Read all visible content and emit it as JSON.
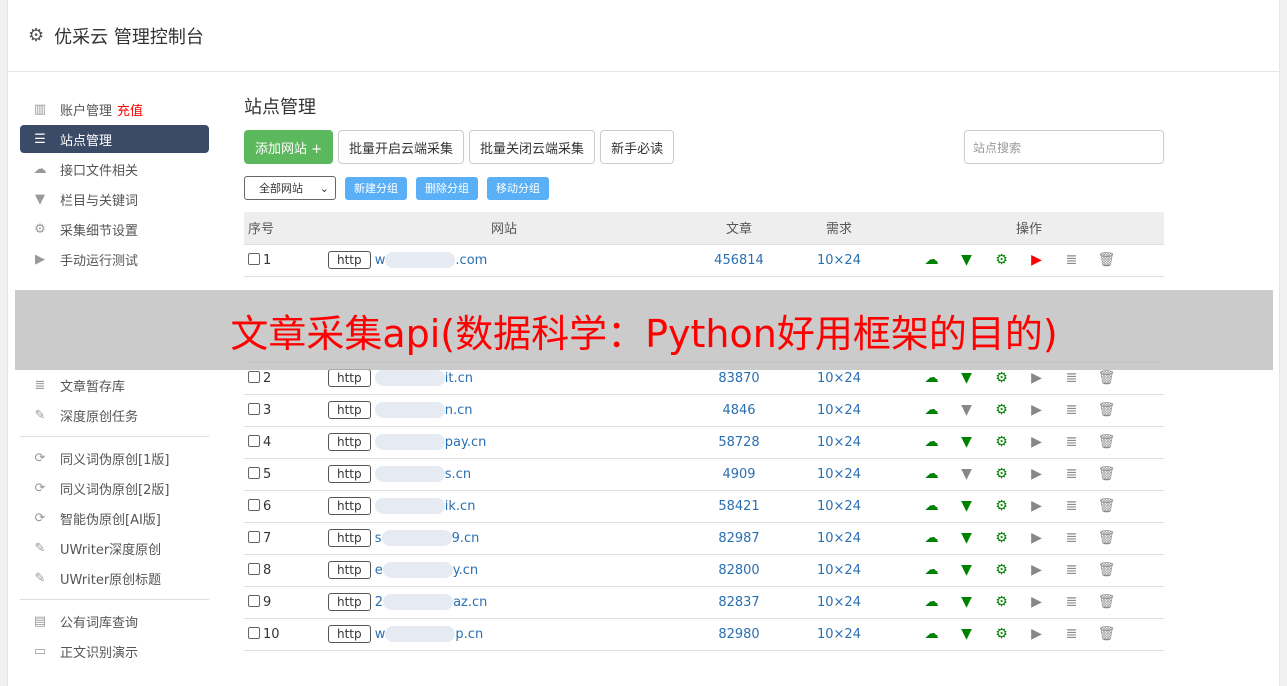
{
  "header": {
    "title": "优采云 管理控制台",
    "icon": "gear-icon"
  },
  "sidebar": {
    "items": [
      {
        "label": "账户管理",
        "extra": "充值",
        "icon": "bar-chart-icon"
      },
      {
        "label": "站点管理",
        "icon": "server-icon",
        "active": true
      },
      {
        "label": "接口文件相关",
        "icon": "cloud-upload-icon"
      },
      {
        "label": "栏目与关键词",
        "icon": "filter-icon"
      },
      {
        "label": "采集细节设置",
        "icon": "gears-icon"
      },
      {
        "label": "手动运行测试",
        "icon": "play-icon"
      },
      {
        "label": "文章暂存库",
        "icon": "database-icon"
      },
      {
        "label": "深度原创任务",
        "icon": "edit-icon"
      }
    ],
    "group2": [
      {
        "label": "同义词伪原创[1版]",
        "icon": "refresh-icon"
      },
      {
        "label": "同义词伪原创[2版]",
        "icon": "refresh-icon"
      },
      {
        "label": "智能伪原创[AI版]",
        "icon": "refresh-icon"
      },
      {
        "label": "UWriter深度原创",
        "icon": "edit-icon"
      },
      {
        "label": "UWriter原创标题",
        "icon": "edit-icon"
      }
    ],
    "group3": [
      {
        "label": "公有词库查询",
        "icon": "book-icon"
      },
      {
        "label": "正文识别演示",
        "icon": "monitor-icon"
      }
    ]
  },
  "main": {
    "title": "站点管理",
    "buttons": {
      "add": "添加网站 +",
      "enable": "批量开启云端采集",
      "disable": "批量关闭云端采集",
      "guide": "新手必读"
    },
    "search_placeholder": "站点搜索",
    "group_select": "全部网站",
    "group_buttons": {
      "new": "新建分组",
      "delete": "删除分组",
      "move": "移动分组"
    },
    "columns": [
      "序号",
      "网站",
      "文章",
      "需求",
      "操作"
    ],
    "rows": [
      {
        "n": "1",
        "proto": "http",
        "pre": "w",
        "suf": ".com",
        "articles": "456814",
        "need": "10×24",
        "play": "red",
        "filter": "green"
      },
      {
        "n": "2",
        "proto": "http",
        "pre": "",
        "suf": "it.cn",
        "articles": "83870",
        "need": "10×24",
        "play": "gray",
        "filter": "green"
      },
      {
        "n": "3",
        "proto": "http",
        "pre": "",
        "suf": "n.cn",
        "articles": "4846",
        "need": "10×24",
        "play": "gray",
        "filter": "gray"
      },
      {
        "n": "4",
        "proto": "http",
        "pre": "",
        "suf": "pay.cn",
        "articles": "58728",
        "need": "10×24",
        "play": "gray",
        "filter": "green"
      },
      {
        "n": "5",
        "proto": "http",
        "pre": "",
        "suf": "s.cn",
        "articles": "4909",
        "need": "10×24",
        "play": "gray",
        "filter": "gray"
      },
      {
        "n": "6",
        "proto": "http",
        "pre": "",
        "suf": "ik.cn",
        "articles": "58421",
        "need": "10×24",
        "play": "gray",
        "filter": "green"
      },
      {
        "n": "7",
        "proto": "http",
        "pre": "s",
        "suf": "9.cn",
        "articles": "82987",
        "need": "10×24",
        "play": "gray",
        "filter": "green"
      },
      {
        "n": "8",
        "proto": "http",
        "pre": "e",
        "suf": "y.cn",
        "articles": "82800",
        "need": "10×24",
        "play": "gray",
        "filter": "green"
      },
      {
        "n": "9",
        "proto": "http",
        "pre": "2",
        "suf": "az.cn",
        "articles": "82837",
        "need": "10×24",
        "play": "gray",
        "filter": "green"
      },
      {
        "n": "10",
        "proto": "http",
        "pre": "w",
        "suf": "p.cn",
        "articles": "82980",
        "need": "10×24",
        "play": "gray",
        "filter": "green"
      }
    ]
  },
  "overlay": {
    "text": "文章采集api(数据科学：Python好用框架的目的)"
  },
  "colors": {
    "green": "#008000",
    "red": "#ff0000",
    "gray": "#888888",
    "active": "#3b4b67",
    "accent": "#5ab0f7"
  }
}
